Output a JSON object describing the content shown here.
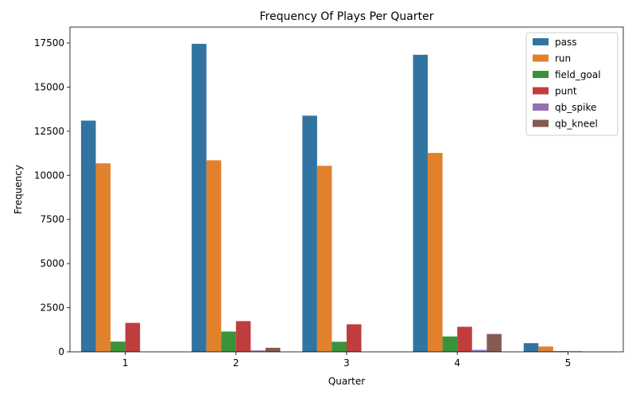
{
  "chart_data": {
    "type": "bar",
    "title": "Frequency Of Plays Per Quarter",
    "xlabel": "Quarter",
    "ylabel": "Frequency",
    "categories": [
      "1",
      "2",
      "3",
      "4",
      "5"
    ],
    "ylim": [
      0,
      18400
    ],
    "yticks": [
      0,
      2500,
      5000,
      7500,
      10000,
      12500,
      15000,
      17500
    ],
    "grid": false,
    "legend_position": "top-right",
    "series": [
      {
        "name": "pass",
        "color": "#3274a1",
        "values": [
          13100,
          17450,
          13380,
          16830,
          490
        ]
      },
      {
        "name": "run",
        "color": "#e1812c",
        "values": [
          10680,
          10850,
          10540,
          11270,
          300
        ]
      },
      {
        "name": "field_goal",
        "color": "#3a923a",
        "values": [
          580,
          1150,
          570,
          870,
          40
        ]
      },
      {
        "name": "punt",
        "color": "#c03d3e",
        "values": [
          1640,
          1740,
          1560,
          1420,
          30
        ]
      },
      {
        "name": "qb_spike",
        "color": "#9372b2",
        "values": [
          0,
          80,
          0,
          110,
          0
        ]
      },
      {
        "name": "qb_kneel",
        "color": "#845b53",
        "values": [
          0,
          230,
          0,
          1010,
          0
        ]
      }
    ]
  }
}
